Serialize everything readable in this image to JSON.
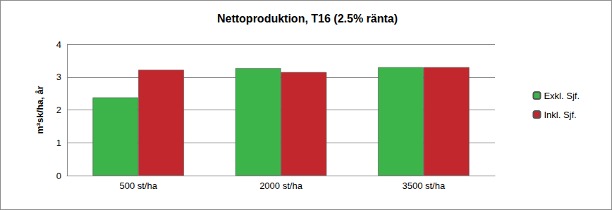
{
  "chart_data": {
    "type": "bar",
    "title": "Nettoproduktion, T16 (2.5% ränta)",
    "y_label": "m³sk/ha, år",
    "categories": [
      "500 st/ha",
      "2000 st/ha",
      "3500 st/ha"
    ],
    "series": [
      {
        "name": "Exkl. Sjf.",
        "color": "#3cb44a",
        "values": [
          2.38,
          3.27,
          3.3
        ]
      },
      {
        "name": "Inkl. Sjf.",
        "color": "#c1272d",
        "values": [
          3.22,
          3.15,
          3.3
        ]
      }
    ],
    "ylim": [
      0,
      4
    ],
    "yticks": [
      0,
      1,
      2,
      3,
      4
    ],
    "grid": true,
    "legend": "right"
  }
}
